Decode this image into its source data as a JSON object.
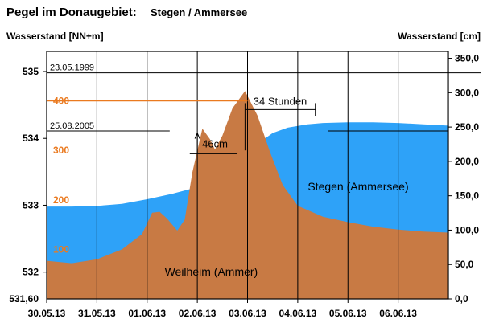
{
  "chart_data": {
    "type": "area",
    "title_main": "Pegel im Donaugebiet:",
    "title_sub": "Stegen / Ammersee",
    "ylabel_left": "Wasserstand  [NN+m]",
    "ylabel_right": "Wasserstand  [cm]",
    "left_axis": {
      "range": [
        531.6,
        535.3
      ],
      "ticks": [
        {
          "value": 535,
          "label": "535"
        },
        {
          "value": 534,
          "label": "534"
        },
        {
          "value": 533,
          "label": "533"
        },
        {
          "value": 532,
          "label": "532"
        },
        {
          "value": 531.6,
          "label": "531,60"
        }
      ]
    },
    "right_axis": {
      "range": [
        0,
        360
      ],
      "ticks": [
        {
          "value": 350,
          "label": "350,0"
        },
        {
          "value": 300,
          "label": "300,0"
        },
        {
          "value": 250,
          "label": "250,0"
        },
        {
          "value": 200,
          "label": "200,0"
        },
        {
          "value": 150,
          "label": "150,0"
        },
        {
          "value": 100,
          "label": "100,0"
        },
        {
          "value": 50,
          "label": "50,0"
        },
        {
          "value": 0,
          "label": "0,0"
        }
      ]
    },
    "weilheim_axis": {
      "range": [
        0,
        500
      ],
      "color": "#ea7a20",
      "ticks": [
        {
          "value": 400,
          "label": "400"
        },
        {
          "value": 300,
          "label": "300"
        },
        {
          "value": 200,
          "label": "200"
        },
        {
          "value": 100,
          "label": "100"
        }
      ]
    },
    "x_axis": {
      "range": [
        0,
        8
      ],
      "ticks": [
        {
          "value": 0,
          "label": "30.05.13"
        },
        {
          "value": 1,
          "label": "31.05.13"
        },
        {
          "value": 2,
          "label": "01.06.13"
        },
        {
          "value": 3,
          "label": "02.06.13"
        },
        {
          "value": 4,
          "label": "03.06.13"
        },
        {
          "value": 5,
          "label": "04.06.13"
        },
        {
          "value": 6,
          "label": "05.06.13"
        },
        {
          "value": 7,
          "label": "06.06.13"
        }
      ]
    },
    "series": [
      {
        "name": "Stegen (Ammersee)",
        "color": "#2ea2f8",
        "axis": "left",
        "points": [
          [
            0,
            532.98
          ],
          [
            0.5,
            532.98
          ],
          [
            1,
            532.99
          ],
          [
            1.5,
            533.02
          ],
          [
            2,
            533.09
          ],
          [
            2.5,
            533.17
          ],
          [
            3,
            533.27
          ],
          [
            3.3,
            533.37
          ],
          [
            3.6,
            533.52
          ],
          [
            3.9,
            533.74
          ],
          [
            4.2,
            533.92
          ],
          [
            4.5,
            534.08
          ],
          [
            4.8,
            534.16
          ],
          [
            5.2,
            534.21
          ],
          [
            5.5,
            534.23
          ],
          [
            6,
            534.24
          ],
          [
            6.5,
            534.24
          ],
          [
            7,
            534.23
          ],
          [
            7.5,
            534.21
          ],
          [
            8,
            534.19
          ]
        ]
      },
      {
        "name": "Weilheim (Ammer)",
        "color": "#c87a44",
        "axis": "weilheim",
        "points": [
          [
            0,
            77
          ],
          [
            0.5,
            72
          ],
          [
            1,
            80
          ],
          [
            1.5,
            100
          ],
          [
            1.9,
            131
          ],
          [
            2.1,
            174
          ],
          [
            2.25,
            176
          ],
          [
            2.4,
            162
          ],
          [
            2.6,
            138
          ],
          [
            2.75,
            160
          ],
          [
            2.9,
            255
          ],
          [
            3.1,
            344
          ],
          [
            3.25,
            323
          ],
          [
            3.35,
            302
          ],
          [
            3.5,
            330
          ],
          [
            3.7,
            385
          ],
          [
            3.95,
            420
          ],
          [
            4.2,
            370
          ],
          [
            4.45,
            296
          ],
          [
            4.7,
            230
          ],
          [
            5,
            188
          ],
          [
            5.5,
            166
          ],
          [
            6,
            155
          ],
          [
            6.5,
            146
          ],
          [
            7,
            140
          ],
          [
            7.5,
            136
          ],
          [
            8,
            134
          ]
        ]
      }
    ],
    "reference_lines": [
      {
        "label": "23.05.1999",
        "value": 534.98,
        "axis": "left"
      },
      {
        "label": "25.08.2005",
        "value": 534.11,
        "axis": "left"
      }
    ],
    "annotations": [
      {
        "label": "34 Stunden"
      },
      {
        "label": "46cm"
      }
    ]
  }
}
